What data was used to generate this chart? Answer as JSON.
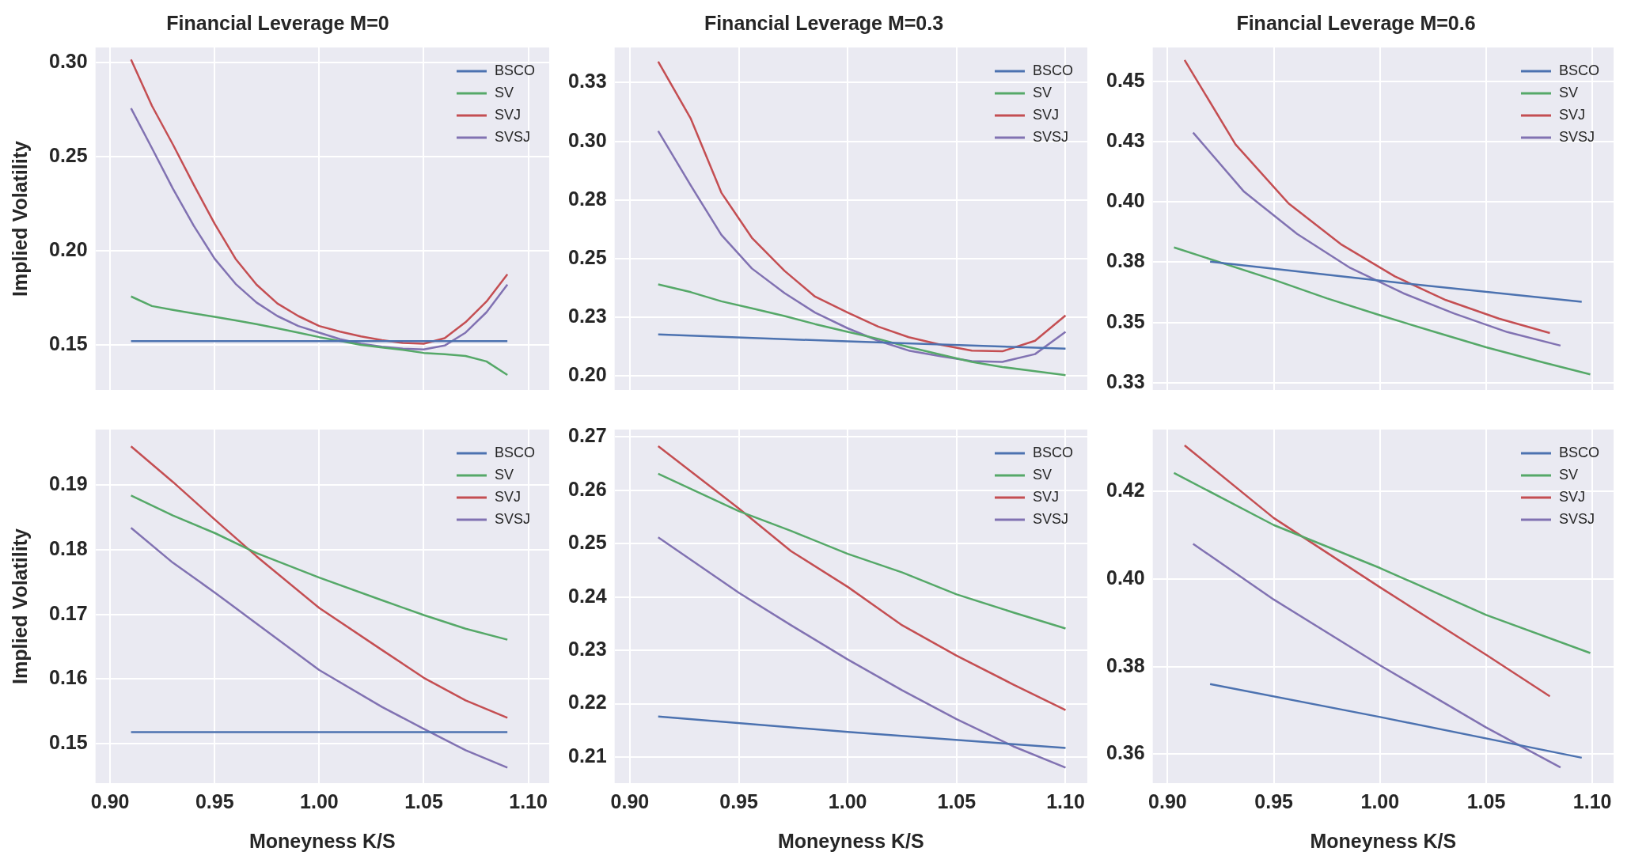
{
  "chart_data": [
    {
      "type": "line",
      "title": "Financial Leverage M=0",
      "ylabel": "Implied Volatility",
      "xlim": [
        0.893,
        1.11
      ],
      "ylim": [
        0.126,
        0.308
      ],
      "xticks": [
        {
          "value": 0.9,
          "label": null
        },
        {
          "value": 0.95,
          "label": null
        },
        {
          "value": 1.0,
          "label": null
        },
        {
          "value": 1.05,
          "label": null
        },
        {
          "value": 1.1,
          "label": null
        }
      ],
      "yticks": [
        {
          "value": 0.15,
          "label": "0.15"
        },
        {
          "value": 0.2,
          "label": "0.20"
        },
        {
          "value": 0.25,
          "label": "0.25"
        },
        {
          "value": 0.3,
          "label": "0.30"
        }
      ],
      "grid": true,
      "legend": "top right",
      "tick_labels": "y",
      "x": [
        0.91,
        0.92,
        0.93,
        0.94,
        0.95,
        0.96,
        0.97,
        0.98,
        0.99,
        1.0,
        1.01,
        1.02,
        1.03,
        1.04,
        1.05,
        1.06,
        1.07,
        1.08,
        1.09
      ],
      "series": [
        {
          "name": "BSCO",
          "color": "#4c72b0",
          "x": [
            0.91,
            1.09
          ],
          "values": [
            0.152,
            0.152
          ]
        },
        {
          "name": "SV",
          "color": "#55a868",
          "values": [
            0.1757,
            0.1706,
            0.1686,
            0.1667,
            0.1649,
            0.163,
            0.161,
            0.1588,
            0.1565,
            0.1541,
            0.152,
            0.15,
            0.1486,
            0.1473,
            0.1457,
            0.145,
            0.1441,
            0.1412,
            0.134
          ]
        },
        {
          "name": "SVJ",
          "color": "#c44e52",
          "values": [
            0.3016,
            0.277,
            0.2565,
            0.235,
            0.2143,
            0.1957,
            0.182,
            0.172,
            0.1653,
            0.16,
            0.157,
            0.1545,
            0.1525,
            0.151,
            0.1506,
            0.1535,
            0.162,
            0.173,
            0.1875
          ]
        },
        {
          "name": "SVSJ",
          "color": "#8172b2",
          "values": [
            0.2757,
            0.2545,
            0.233,
            0.2133,
            0.1957,
            0.1824,
            0.1725,
            0.1653,
            0.16,
            0.1565,
            0.153,
            0.1506,
            0.149,
            0.148,
            0.1475,
            0.1496,
            0.1565,
            0.1673,
            0.182
          ]
        }
      ]
    },
    {
      "type": "line",
      "title": "Financial Leverage M=0.3",
      "xlim": [
        0.893,
        1.11
      ],
      "ylim": [
        0.194,
        0.34
      ],
      "xticks": [
        {
          "value": 0.9,
          "label": null
        },
        {
          "value": 0.95,
          "label": null
        },
        {
          "value": 1.0,
          "label": null
        },
        {
          "value": 1.05,
          "label": null
        },
        {
          "value": 1.1,
          "label": null
        }
      ],
      "yticks": [
        {
          "value": 0.2,
          "label": "0.20"
        },
        {
          "value": 0.225,
          "label": "0.23"
        },
        {
          "value": 0.25,
          "label": "0.25"
        },
        {
          "value": 0.275,
          "label": "0.28"
        },
        {
          "value": 0.3,
          "label": "0.30"
        },
        {
          "value": 0.325,
          "label": "0.33"
        }
      ],
      "grid": true,
      "legend": "top right",
      "tick_labels": "y",
      "x": [
        0.913,
        0.928,
        0.942,
        0.956,
        0.971,
        0.985,
        1.0,
        1.014,
        1.028,
        1.043,
        1.057,
        1.071,
        1.086,
        1.1
      ],
      "series": [
        {
          "name": "BSCO",
          "color": "#4c72b0",
          "x": [
            0.913,
            1.0,
            1.1
          ],
          "values": [
            0.2177,
            0.2147,
            0.2116
          ]
        },
        {
          "name": "SV",
          "color": "#55a868",
          "values": [
            0.239,
            0.2357,
            0.2318,
            0.2288,
            0.2255,
            0.2221,
            0.2188,
            0.2158,
            0.2123,
            0.209,
            0.206,
            0.2038,
            0.202,
            0.2003
          ]
        },
        {
          "name": "SVJ",
          "color": "#c44e52",
          "values": [
            0.334,
            0.3096,
            0.2781,
            0.2589,
            0.2448,
            0.2338,
            0.227,
            0.221,
            0.2165,
            0.2132,
            0.2108,
            0.2105,
            0.215,
            0.2258
          ]
        },
        {
          "name": "SVSJ",
          "color": "#8172b2",
          "values": [
            0.3044,
            0.2811,
            0.2601,
            0.2458,
            0.2353,
            0.227,
            0.2203,
            0.215,
            0.2108,
            0.2083,
            0.2063,
            0.206,
            0.2093,
            0.2188
          ]
        }
      ]
    },
    {
      "type": "line",
      "title": "Financial Leverage M=0.6",
      "xlim": [
        0.893,
        1.11
      ],
      "ylim": [
        0.322,
        0.464
      ],
      "xticks": [
        {
          "value": 0.9,
          "label": null
        },
        {
          "value": 0.95,
          "label": null
        },
        {
          "value": 1.0,
          "label": null
        },
        {
          "value": 1.05,
          "label": null
        },
        {
          "value": 1.1,
          "label": null
        }
      ],
      "yticks": [
        {
          "value": 0.325,
          "label": "0.33"
        },
        {
          "value": 0.35,
          "label": "0.35"
        },
        {
          "value": 0.375,
          "label": "0.38"
        },
        {
          "value": 0.4,
          "label": "0.40"
        },
        {
          "value": 0.425,
          "label": "0.43"
        },
        {
          "value": 0.45,
          "label": "0.45"
        }
      ],
      "grid": true,
      "legend": "top right",
      "tick_labels": "y",
      "series": [
        {
          "name": "BSCO",
          "color": "#4c72b0",
          "x": [
            0.92,
            1.0,
            1.095
          ],
          "values": [
            0.3752,
            0.3673,
            0.3586
          ]
        },
        {
          "name": "SV",
          "color": "#55a868",
          "x": [
            0.903,
            0.95,
            0.975,
            1.0,
            1.026,
            1.05,
            1.077,
            1.099
          ],
          "values": [
            0.3811,
            0.3677,
            0.36,
            0.353,
            0.346,
            0.3397,
            0.3334,
            0.3285
          ]
        },
        {
          "name": "SVJ",
          "color": "#c44e52",
          "x": [
            0.908,
            0.932,
            0.957,
            0.982,
            1.007,
            1.031,
            1.056,
            1.08
          ],
          "values": [
            0.4588,
            0.4238,
            0.3993,
            0.3822,
            0.3691,
            0.3593,
            0.3516,
            0.3456
          ]
        },
        {
          "name": "SVSJ",
          "color": "#8172b2",
          "x": [
            0.912,
            0.936,
            0.961,
            0.986,
            1.011,
            1.035,
            1.06,
            1.085
          ],
          "values": [
            0.4287,
            0.4042,
            0.3867,
            0.3726,
            0.3621,
            0.3537,
            0.346,
            0.3404
          ]
        }
      ]
    },
    {
      "type": "line",
      "ylabel": "Implied Volatility",
      "xlabel": "Moneyness K/S",
      "xlim": [
        0.893,
        1.11
      ],
      "ylim": [
        0.1439,
        0.1986
      ],
      "xticks": [
        {
          "value": 0.9,
          "label": "0.90"
        },
        {
          "value": 0.95,
          "label": "0.95"
        },
        {
          "value": 1.0,
          "label": "1.00"
        },
        {
          "value": 1.05,
          "label": "1.05"
        },
        {
          "value": 1.1,
          "label": "1.10"
        }
      ],
      "yticks": [
        {
          "value": 0.15,
          "label": "0.15"
        },
        {
          "value": 0.16,
          "label": "0.16"
        },
        {
          "value": 0.17,
          "label": "0.17"
        },
        {
          "value": 0.18,
          "label": "0.18"
        },
        {
          "value": 0.19,
          "label": "0.19"
        }
      ],
      "grid": true,
      "legend": "top right",
      "x": [
        0.91,
        0.93,
        0.95,
        0.97,
        1.0,
        1.03,
        1.05,
        1.07,
        1.09
      ],
      "series": [
        {
          "name": "BSCO",
          "color": "#4c72b0",
          "x": [
            0.91,
            1.09
          ],
          "values": [
            0.1518,
            0.1518
          ]
        },
        {
          "name": "SV",
          "color": "#55a868",
          "values": [
            0.1884,
            0.1853,
            0.1826,
            0.1795,
            0.1757,
            0.1722,
            0.1699,
            0.1678,
            0.1661
          ]
        },
        {
          "name": "SVJ",
          "color": "#c44e52",
          "values": [
            0.196,
            0.1905,
            0.1847,
            0.179,
            0.171,
            0.1645,
            0.1602,
            0.1567,
            0.154
          ]
        },
        {
          "name": "SVSJ",
          "color": "#8172b2",
          "values": [
            0.1834,
            0.178,
            0.1734,
            0.1686,
            0.1614,
            0.1557,
            0.1523,
            0.149,
            0.1463
          ]
        }
      ]
    },
    {
      "type": "line",
      "xlabel": "Moneyness K/S",
      "xlim": [
        0.893,
        1.11
      ],
      "ylim": [
        0.2051,
        0.2714
      ],
      "xticks": [
        {
          "value": 0.9,
          "label": "0.90"
        },
        {
          "value": 0.95,
          "label": "0.95"
        },
        {
          "value": 1.0,
          "label": "1.00"
        },
        {
          "value": 1.05,
          "label": "1.05"
        },
        {
          "value": 1.1,
          "label": "1.10"
        }
      ],
      "yticks": [
        {
          "value": 0.21,
          "label": "0.21"
        },
        {
          "value": 0.22,
          "label": "0.22"
        },
        {
          "value": 0.23,
          "label": "0.23"
        },
        {
          "value": 0.24,
          "label": "0.24"
        },
        {
          "value": 0.25,
          "label": "0.25"
        },
        {
          "value": 0.26,
          "label": "0.26"
        },
        {
          "value": 0.27,
          "label": "0.27"
        }
      ],
      "grid": true,
      "legend": "top right",
      "x": [
        0.913,
        0.95,
        0.974,
        1.0,
        1.025,
        1.05,
        1.076,
        1.1
      ],
      "series": [
        {
          "name": "BSCO",
          "color": "#4c72b0",
          "x": [
            0.913,
            1.0,
            1.1
          ],
          "values": [
            0.2176,
            0.2147,
            0.2117
          ]
        },
        {
          "name": "SV",
          "color": "#55a868",
          "values": [
            0.2631,
            0.2561,
            0.2524,
            0.2481,
            0.2446,
            0.2405,
            0.2371,
            0.2341
          ]
        },
        {
          "name": "SVJ",
          "color": "#c44e52",
          "values": [
            0.2683,
            0.2566,
            0.2486,
            0.2419,
            0.2347,
            0.229,
            0.2236,
            0.2188
          ]
        },
        {
          "name": "SVSJ",
          "color": "#8172b2",
          "values": [
            0.2512,
            0.2408,
            0.2347,
            0.2283,
            0.2225,
            0.2171,
            0.212,
            0.208
          ]
        }
      ]
    },
    {
      "type": "line",
      "xlabel": "Moneyness K/S",
      "xlim": [
        0.893,
        1.11
      ],
      "ylim": [
        0.3534,
        0.4341
      ],
      "xticks": [
        {
          "value": 0.9,
          "label": "0.90"
        },
        {
          "value": 0.95,
          "label": "0.95"
        },
        {
          "value": 1.0,
          "label": "1.00"
        },
        {
          "value": 1.05,
          "label": "1.05"
        },
        {
          "value": 1.1,
          "label": "1.10"
        }
      ],
      "yticks": [
        {
          "value": 0.36,
          "label": "0.36"
        },
        {
          "value": 0.38,
          "label": "0.38"
        },
        {
          "value": 0.4,
          "label": "0.40"
        },
        {
          "value": 0.42,
          "label": "0.42"
        }
      ],
      "grid": true,
      "legend": "top right",
      "series": [
        {
          "name": "BSCO",
          "color": "#4c72b0",
          "x": [
            0.92,
            1.0,
            1.095
          ],
          "values": [
            0.376,
            0.3685,
            0.3592
          ]
        },
        {
          "name": "SV",
          "color": "#55a868",
          "x": [
            0.903,
            0.95,
            1.0,
            1.05,
            1.099
          ],
          "values": [
            0.4242,
            0.4123,
            0.4025,
            0.3918,
            0.3831
          ]
        },
        {
          "name": "SVJ",
          "color": "#c44e52",
          "x": [
            0.908,
            0.95,
            1.0,
            1.05,
            1.08
          ],
          "values": [
            0.4305,
            0.4139,
            0.3981,
            0.3827,
            0.3732
          ]
        },
        {
          "name": "SVSJ",
          "color": "#8172b2",
          "x": [
            0.912,
            0.95,
            1.0,
            1.05,
            1.085
          ],
          "values": [
            0.408,
            0.3953,
            0.3803,
            0.3661,
            0.357
          ]
        }
      ]
    }
  ]
}
